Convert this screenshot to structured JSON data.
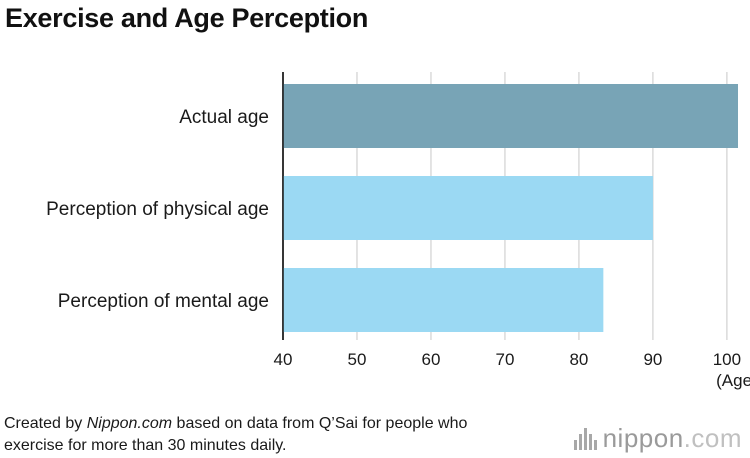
{
  "title": "Exercise and Age Perception",
  "chart_data": {
    "type": "bar",
    "orientation": "horizontal",
    "title": "Exercise and Age Perception",
    "categories": [
      "Actual age",
      "Perception of physical age",
      "Perception of mental age"
    ],
    "values": [
      101.5,
      90,
      83.3
    ],
    "colors": [
      "#78a4b6",
      "#9bd9f3",
      "#9bd9f3"
    ],
    "xlim": [
      40,
      101.5
    ],
    "xticks": [
      40,
      50,
      60,
      70,
      80,
      90,
      100
    ],
    "xlabel": "(Age)",
    "grid": true
  },
  "footer": {
    "prefix": "Created by ",
    "source_name": "Nippon.com",
    "rest_line1": " based on data from Q’Sai for people who",
    "line2": "exercise for more than 30 minutes daily."
  },
  "logo": {
    "name": "nippon",
    "suffix": ".com"
  }
}
